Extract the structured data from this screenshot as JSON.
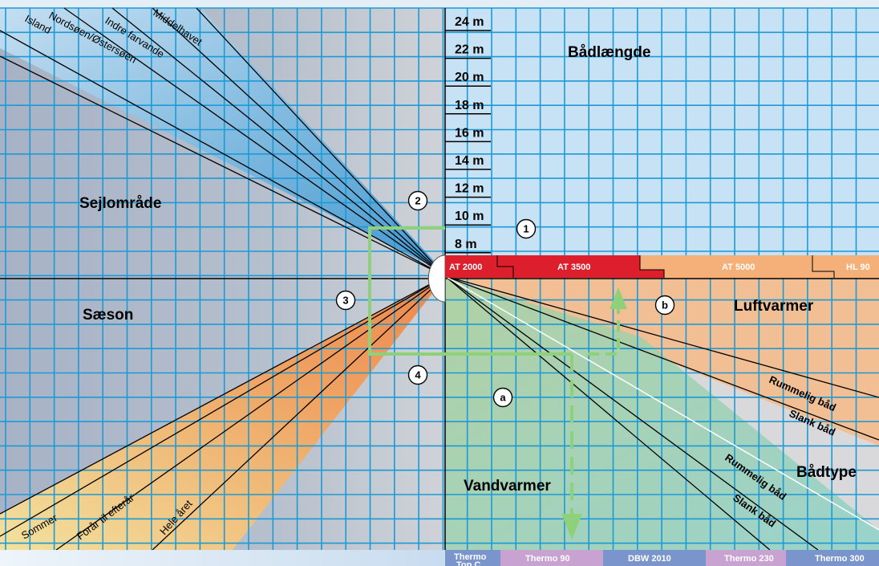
{
  "sections": {
    "boat_length": "Bådlængde",
    "sailing_area": "Sejlområde",
    "season": "Sæson",
    "air_heater": "Luftvarmer",
    "boat_type": "Bådtype",
    "water_heater": "Vandvarmer"
  },
  "lengths": [
    "24 m",
    "22 m",
    "20 m",
    "18 m",
    "16 m",
    "14 m",
    "12 m",
    "10 m",
    "8 m"
  ],
  "sailing_areas": [
    "Island",
    "Nordsøen/Østersøen",
    "Indre farvande",
    "Middelhavet"
  ],
  "seasons": [
    "Sommer",
    "Forår til efterår",
    "Hele året"
  ],
  "boat_type_air": [
    "Rummelig båd",
    "Slank båd"
  ],
  "boat_type_water": [
    "Rummelig båd",
    "Slank båd"
  ],
  "air_products": [
    "AT 2000",
    "AT 3500",
    "AT 5000",
    "HL 90"
  ],
  "water_products": [
    "Thermo Top C",
    "Thermo 90",
    "DBW 2010",
    "Thermo 230",
    "Thermo 300"
  ],
  "steps": [
    "1",
    "2",
    "3",
    "4",
    "a",
    "b"
  ],
  "colors": {
    "sky": "#c7e2f5",
    "grid": "#1c9ad6",
    "air_red": "#dc1e2d",
    "air_orange": "#f4b078",
    "water_purple": "#c8a2d0",
    "water_blue": "#7a94cc",
    "path_green": "#8fd07a"
  }
}
